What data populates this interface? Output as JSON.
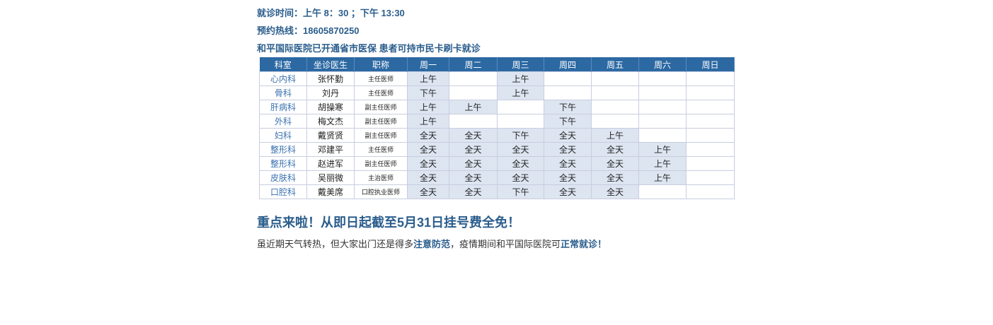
{
  "info": {
    "hours": "就诊时间：上午 8：30 ；下午 13:30",
    "hotline": "预约热线：18605870250",
    "insurance": "和平国际医院已开通省市医保 患者可持市民卡刷卡就诊"
  },
  "table": {
    "headers": [
      "科室",
      "坐诊医生",
      "职称",
      "周一",
      "周二",
      "周三",
      "周四",
      "周五",
      "周六",
      "周日"
    ],
    "rows": [
      {
        "dept": "心内科",
        "doctor": "张怀勤",
        "title": "主任医师",
        "days": [
          "上午",
          "",
          "上午",
          "",
          "",
          "",
          ""
        ]
      },
      {
        "dept": "骨科",
        "doctor": "刘丹",
        "title": "主任医师",
        "days": [
          "下午",
          "",
          "上午",
          "",
          "",
          "",
          ""
        ]
      },
      {
        "dept": "肝病科",
        "doctor": "胡操寒",
        "title": "副主任医师",
        "days": [
          "上午",
          "上午",
          "",
          "下午",
          "",
          "",
          ""
        ]
      },
      {
        "dept": "外科",
        "doctor": "梅文杰",
        "title": "副主任医师",
        "days": [
          "上午",
          "",
          "",
          "下午",
          "",
          "",
          ""
        ]
      },
      {
        "dept": "妇科",
        "doctor": "戴贤贤",
        "title": "副主任医师",
        "days": [
          "全天",
          "全天",
          "下午",
          "全天",
          "上午",
          "",
          ""
        ]
      },
      {
        "dept": "整形科",
        "doctor": "邓建平",
        "title": "主任医师",
        "days": [
          "全天",
          "全天",
          "全天",
          "全天",
          "全天",
          "上午",
          ""
        ]
      },
      {
        "dept": "整形科",
        "doctor": "赵进军",
        "title": "副主任医师",
        "days": [
          "全天",
          "全天",
          "全天",
          "全天",
          "全天",
          "上午",
          ""
        ]
      },
      {
        "dept": "皮肤科",
        "doctor": "吴丽微",
        "title": "主治医师",
        "days": [
          "全天",
          "全天",
          "全天",
          "全天",
          "全天",
          "上午",
          ""
        ]
      },
      {
        "dept": "口腔科",
        "doctor": "戴美席",
        "title": "口腔执业医师",
        "days": [
          "全天",
          "全天",
          "下午",
          "全天",
          "全天",
          "",
          ""
        ]
      }
    ]
  },
  "promo": {
    "headline": "重点来啦！从即日起截至5月31日挂号费全免！",
    "text_1": "虽近期天气转热，但大家出门还是得多",
    "emph_1": "注意防范",
    "text_2": "，疫情期间和平国际医院可",
    "emph_2": "正常就诊！"
  }
}
